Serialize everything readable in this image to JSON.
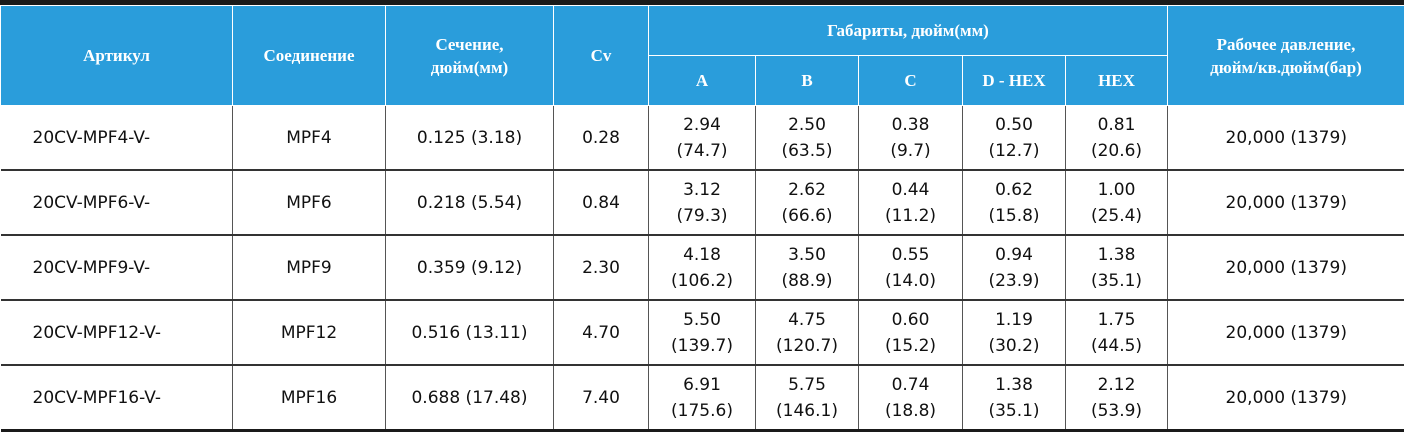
{
  "table": {
    "header": {
      "row1": [
        "Артикул",
        "Соединение",
        "Сечение,\nдюйм(мм)",
        "Cv",
        "Габариты, дюйм(мм)",
        "Рабочее давление,\nдюйм/кв.дюйм(бар)"
      ],
      "row2": [
        "A",
        "B",
        "C",
        "D - HEX",
        "HEX"
      ]
    },
    "rows": [
      [
        "20CV-MPF4-V-",
        "MPF4",
        "0.125 (3.18)",
        "0.28",
        [
          "2.94",
          "(74.7)"
        ],
        [
          "2.50",
          "(63.5)"
        ],
        [
          "0.38",
          "(9.7)"
        ],
        [
          "0.50",
          "(12.7)"
        ],
        [
          "0.81",
          "(20.6)"
        ],
        "20,000 (1379)"
      ],
      [
        "20CV-MPF6-V-",
        "MPF6",
        "0.218 (5.54)",
        "0.84",
        [
          "3.12",
          "(79.3)"
        ],
        [
          "2.62",
          "(66.6)"
        ],
        [
          "0.44",
          "(11.2)"
        ],
        [
          "0.62",
          "(15.8)"
        ],
        [
          "1.00",
          "(25.4)"
        ],
        "20,000 (1379)"
      ],
      [
        "20CV-MPF9-V-",
        "MPF9",
        "0.359 (9.12)",
        "2.30",
        [
          "4.18",
          "(106.2)"
        ],
        [
          "3.50",
          "(88.9)"
        ],
        [
          "0.55",
          "(14.0)"
        ],
        [
          "0.94",
          "(23.9)"
        ],
        [
          "1.38",
          "(35.1)"
        ],
        "20,000 (1379)"
      ],
      [
        "20CV-MPF12-V-",
        "MPF12",
        "0.516 (13.11)",
        "4.70",
        [
          "5.50",
          "(139.7)"
        ],
        [
          "4.75",
          "(120.7)"
        ],
        [
          "0.60",
          "(15.2)"
        ],
        [
          "1.19",
          "(30.2)"
        ],
        [
          "1.75",
          "(44.5)"
        ],
        "20,000 (1379)"
      ],
      [
        "20CV-MPF16-V-",
        "MPF16",
        "0.688 (17.48)",
        "7.40",
        [
          "6.91",
          "(175.6)"
        ],
        [
          "5.75",
          "(146.1)"
        ],
        [
          "0.74",
          "(18.8)"
        ],
        [
          "1.38",
          "(35.1)"
        ],
        [
          "2.12",
          "(53.9)"
        ],
        "20,000 (1379)"
      ]
    ]
  }
}
